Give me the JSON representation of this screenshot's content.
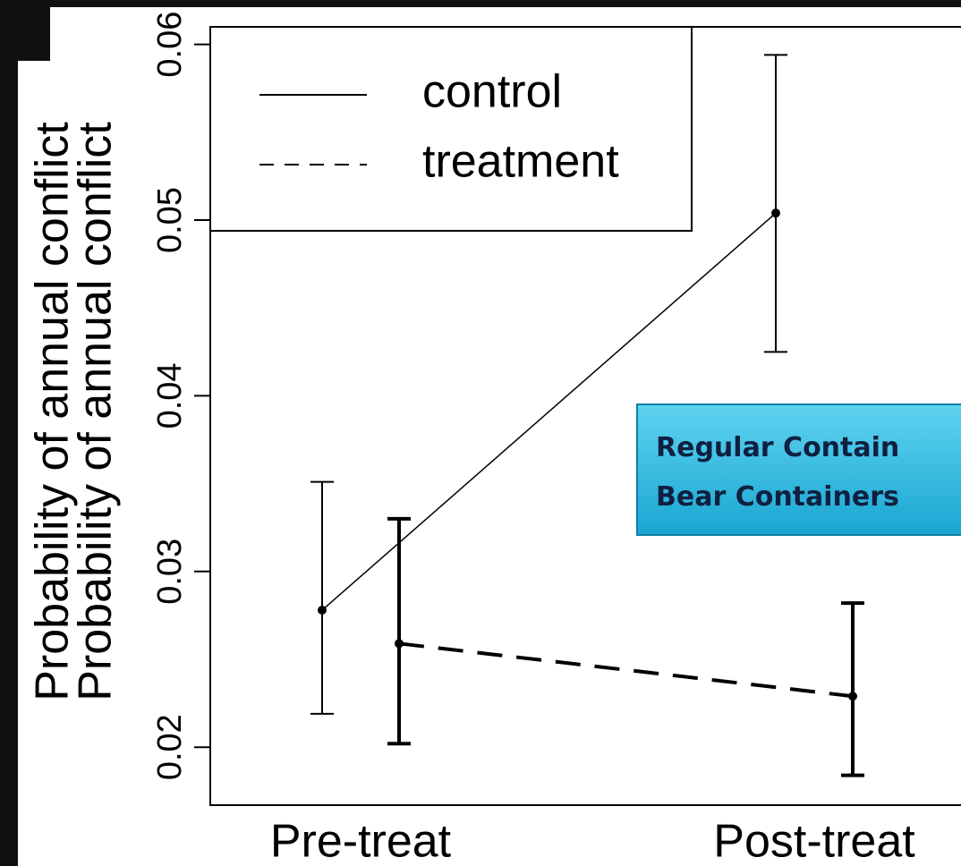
{
  "chart_data": {
    "type": "line",
    "y_label": "Probability of annual conflict",
    "categories": [
      "Pre-treat",
      "Post-treat"
    ],
    "series": [
      {
        "name": "control",
        "color": "#000000",
        "dash": false,
        "values": [
          0.0278,
          0.0504
        ],
        "upper": [
          0.0351,
          0.0594
        ],
        "lower": [
          0.0219,
          0.0425
        ]
      },
      {
        "name": "treatment",
        "color": "#000000",
        "dash": true,
        "values": [
          0.0259,
          0.0229
        ],
        "upper": [
          0.033,
          0.0282
        ],
        "lower": [
          0.0202,
          0.0184
        ]
      }
    ],
    "ylim": [
      0.0167,
      0.061
    ],
    "yticks": [
      0.02,
      0.03,
      0.04,
      0.05,
      0.06
    ],
    "legend": "top-left",
    "annotation": {
      "lines": [
        "Regular Contain",
        "Bear Containers"
      ]
    }
  }
}
